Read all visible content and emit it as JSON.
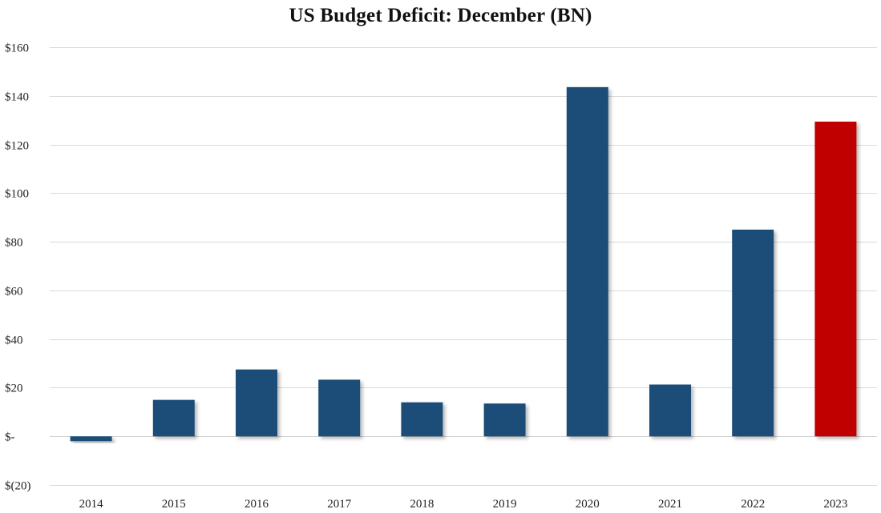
{
  "chart_data": {
    "type": "bar",
    "title": "US Budget Deficit: December  (BN)",
    "xlabel": "",
    "ylabel": "",
    "categories": [
      "2014",
      "2015",
      "2016",
      "2017",
      "2018",
      "2019",
      "2020",
      "2021",
      "2022",
      "2023"
    ],
    "values": [
      -2,
      15,
      27.5,
      23.3,
      14,
      13.5,
      143.6,
      21.3,
      85,
      129.4
    ],
    "highlight_index": 9,
    "ylim": [
      -20,
      160
    ],
    "yticks": [
      -20,
      0,
      20,
      40,
      60,
      80,
      100,
      120,
      140,
      160
    ],
    "ytick_labels": [
      "$(20)",
      "$-",
      "$20",
      "$40",
      "$60",
      "$80",
      "$100",
      "$120",
      "$140",
      "$160"
    ],
    "grid": true,
    "colors": {
      "bar": "#1f4e79",
      "highlight": "#c00000",
      "grid": "#d9d9d9"
    }
  }
}
